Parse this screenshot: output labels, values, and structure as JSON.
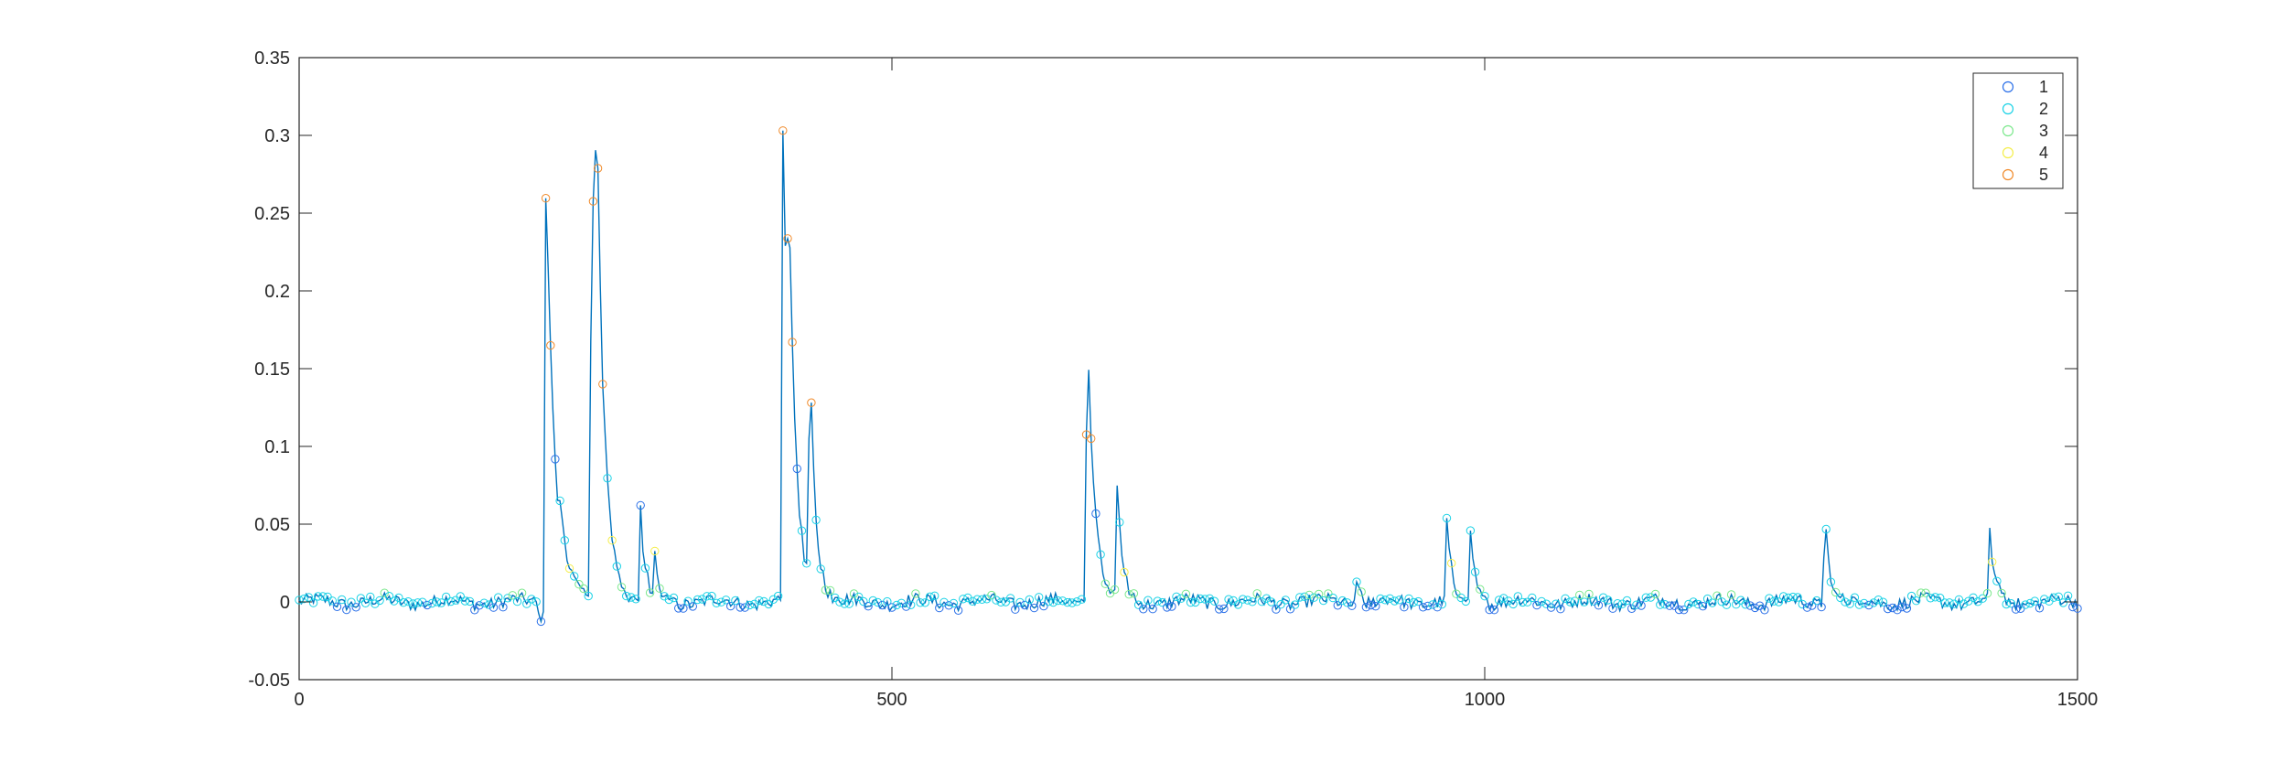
{
  "chart_data": {
    "type": "line",
    "title": "",
    "xlabel": "",
    "ylabel": "",
    "xlim": [
      0,
      1500
    ],
    "ylim": [
      -0.05,
      0.35
    ],
    "xticks": [
      0,
      500,
      1000,
      1500
    ],
    "xtick_labels": [
      "0",
      "500",
      "1000",
      "1500"
    ],
    "yticks": [
      -0.05,
      0,
      0.05,
      0.1,
      0.15,
      0.2,
      0.25,
      0.3,
      0.35
    ],
    "ytick_labels": [
      "-0.05",
      "0",
      "0.05",
      "0.1",
      "0.15",
      "0.2",
      "0.25",
      "0.3",
      "0.35"
    ],
    "grid": false,
    "legend_position": "top-right",
    "line_color": "#0072BD",
    "legend": [
      {
        "label": "1",
        "color": "#2A6FE8"
      },
      {
        "label": "2",
        "color": "#19D2E6"
      },
      {
        "label": "3",
        "color": "#7BE88C"
      },
      {
        "label": "4",
        "color": "#F4EE4A"
      },
      {
        "label": "5",
        "color": "#F08A2A"
      }
    ],
    "baseline_noise": 0.004,
    "peaks": [
      {
        "x": 208,
        "y": 0.295,
        "width": 8
      },
      {
        "x": 247,
        "y": 0.302,
        "width": 7
      },
      {
        "x": 251,
        "y": 0.17,
        "width": 6
      },
      {
        "x": 288,
        "y": 0.06,
        "width": 4
      },
      {
        "x": 300,
        "y": 0.025,
        "width": 3
      },
      {
        "x": 408,
        "y": 0.305,
        "width": 7
      },
      {
        "x": 413,
        "y": 0.13,
        "width": 5
      },
      {
        "x": 431,
        "y": 0.145,
        "width": 5
      },
      {
        "x": 665,
        "y": 0.19,
        "width": 6
      },
      {
        "x": 690,
        "y": 0.082,
        "width": 4
      },
      {
        "x": 893,
        "y": 0.02,
        "width": 2
      },
      {
        "x": 968,
        "y": 0.053,
        "width": 4
      },
      {
        "x": 988,
        "y": 0.05,
        "width": 4
      },
      {
        "x": 1287,
        "y": 0.06,
        "width": 4
      },
      {
        "x": 1426,
        "y": 0.046,
        "width": 4
      }
    ]
  }
}
